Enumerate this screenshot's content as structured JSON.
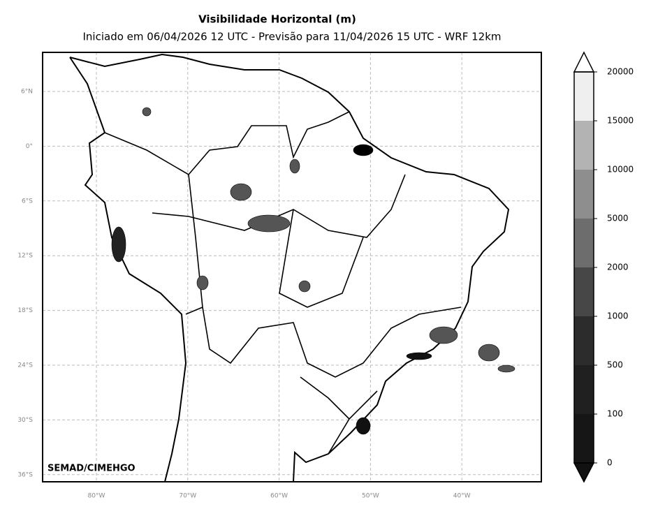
{
  "title": "Visibilidade Horizontal (m)",
  "subtitle": "Iniciado em 06/04/2026 12 UTC - Previsão para 11/04/2026 15 UTC - WRF 12km",
  "credit": "SEMAD/CIMEHGO",
  "map": {
    "lat_labels": [
      "6°N",
      "0°",
      "6°S",
      "12°S",
      "18°S",
      "24°S",
      "30°S",
      "36°S"
    ],
    "lon_labels": [
      "80°W",
      "70°W",
      "60°W",
      "50°W",
      "40°W"
    ]
  },
  "colorbar": {
    "ticks": [
      0,
      100,
      500,
      1000,
      2000,
      5000,
      10000,
      15000,
      20000
    ],
    "colors": [
      "#161616",
      "#202020",
      "#2c2c2c",
      "#474747",
      "#6d6d6d",
      "#8e8e8e",
      "#b3b3b3",
      "#efefef"
    ],
    "under_color": "#111111",
    "over_color": "#ffffff"
  }
}
